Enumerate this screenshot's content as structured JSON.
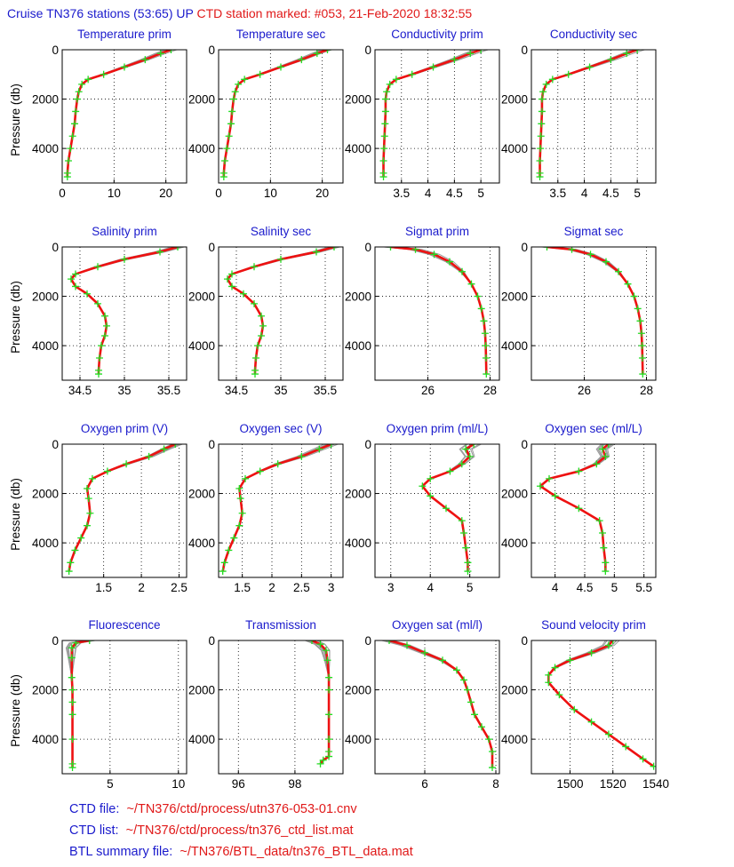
{
  "header": {
    "cruise_text": "Cruise TN376 stations (53:65) UP",
    "station_text": "CTD station marked: #053, 21-Feb-2020 18:32:55"
  },
  "footer": [
    {
      "label": "CTD file:",
      "value": "~/TN376/ctd/process/utn376-053-01.cnv"
    },
    {
      "label": "CTD list:",
      "value": "~/TN376/ctd/process/tn376_ctd_list.mat"
    },
    {
      "label": "BTL summary file:",
      "value": "~/TN376/BTL_data/tn376_BTL_data.mat"
    }
  ],
  "colors": {
    "title": "#1a1acc",
    "marked_station": "#ee1111",
    "bottle": "#22dd22",
    "other_stations": "#9a9a9a",
    "axes": "#000000"
  },
  "chart_data": [
    {
      "type": "line",
      "title": "Temperature prim",
      "ylabel": "Pressure (db)",
      "xlim": [
        0,
        24
      ],
      "ylim": [
        5400,
        0
      ],
      "xticks": [
        0,
        10,
        20
      ],
      "yticks": [
        0,
        2000,
        4000
      ],
      "series": [
        {
          "x": [
            21,
            19,
            16,
            12,
            8,
            5,
            3.8,
            3.2,
            2.9,
            2.6,
            2.4,
            2.0,
            1.6,
            1.2,
            1.0,
            1.0
          ],
          "y": [
            0,
            150,
            400,
            700,
            1000,
            1200,
            1400,
            1700,
            2000,
            2500,
            3000,
            3500,
            4000,
            4500,
            5000,
            5150
          ]
        }
      ]
    },
    {
      "type": "line",
      "title": "Temperature sec",
      "ylabel": "",
      "xlim": [
        0,
        24
      ],
      "ylim": [
        5400,
        0
      ],
      "xticks": [
        0,
        10,
        20
      ],
      "yticks": [
        0,
        2000,
        4000
      ],
      "series": [
        {
          "x": [
            21,
            19,
            16,
            12,
            8,
            5,
            3.8,
            3.2,
            2.9,
            2.6,
            2.4,
            2.0,
            1.6,
            1.2,
            1.0,
            1.0
          ],
          "y": [
            0,
            150,
            400,
            700,
            1000,
            1200,
            1400,
            1700,
            2000,
            2500,
            3000,
            3500,
            4000,
            4500,
            5000,
            5150
          ]
        }
      ]
    },
    {
      "type": "line",
      "title": "Conductivity prim",
      "ylabel": "",
      "xlim": [
        3,
        5.35
      ],
      "ylim": [
        5400,
        0
      ],
      "xticks": [
        3.5,
        4,
        4.5,
        5
      ],
      "xticklabels": [
        "3.5",
        "4",
        "4.5",
        "5"
      ],
      "yticks": [
        0,
        2000,
        4000
      ],
      "series": [
        {
          "x": [
            5.0,
            4.8,
            4.5,
            4.1,
            3.7,
            3.4,
            3.28,
            3.22,
            3.2,
            3.2,
            3.19,
            3.18,
            3.17,
            3.16,
            3.16,
            3.16
          ],
          "y": [
            0,
            150,
            400,
            700,
            1000,
            1200,
            1400,
            1700,
            2000,
            2500,
            3000,
            3500,
            4000,
            4500,
            5000,
            5150
          ]
        }
      ]
    },
    {
      "type": "line",
      "title": "Conductivity sec",
      "ylabel": "",
      "xlim": [
        3,
        5.35
      ],
      "ylim": [
        5400,
        0
      ],
      "xticks": [
        3.5,
        4,
        4.5,
        5
      ],
      "xticklabels": [
        "3.5",
        "4",
        "4.5",
        "5"
      ],
      "yticks": [
        0,
        2000,
        4000
      ],
      "series": [
        {
          "x": [
            5.0,
            4.8,
            4.5,
            4.1,
            3.7,
            3.4,
            3.28,
            3.22,
            3.2,
            3.2,
            3.19,
            3.18,
            3.17,
            3.16,
            3.16,
            3.16
          ],
          "y": [
            0,
            150,
            400,
            700,
            1000,
            1200,
            1400,
            1700,
            2000,
            2500,
            3000,
            3500,
            4000,
            4500,
            5000,
            5150
          ]
        }
      ]
    },
    {
      "type": "line",
      "title": "Salinity prim",
      "ylabel": "Pressure (db)",
      "xlim": [
        34.3,
        35.7
      ],
      "ylim": [
        5400,
        0
      ],
      "xticks": [
        34.5,
        35,
        35.5
      ],
      "xticklabels": [
        "34.5",
        "35",
        "35.5"
      ],
      "yticks": [
        0,
        2000,
        4000
      ],
      "series": [
        {
          "x": [
            35.6,
            35.4,
            35.0,
            34.7,
            34.45,
            34.4,
            34.45,
            34.58,
            34.7,
            34.78,
            34.8,
            34.78,
            34.74,
            34.72,
            34.71,
            34.71
          ],
          "y": [
            0,
            200,
            500,
            800,
            1100,
            1300,
            1600,
            1900,
            2300,
            2800,
            3200,
            3600,
            4000,
            4500,
            5000,
            5150
          ]
        }
      ]
    },
    {
      "type": "line",
      "title": "Salinity sec",
      "ylabel": "",
      "xlim": [
        34.3,
        35.7
      ],
      "ylim": [
        5400,
        0
      ],
      "xticks": [
        34.5,
        35,
        35.5
      ],
      "xticklabels": [
        "34.5",
        "35",
        "35.5"
      ],
      "yticks": [
        0,
        2000,
        4000
      ],
      "series": [
        {
          "x": [
            35.6,
            35.4,
            35.0,
            34.7,
            34.45,
            34.4,
            34.45,
            34.58,
            34.7,
            34.78,
            34.8,
            34.78,
            34.74,
            34.72,
            34.71,
            34.71
          ],
          "y": [
            0,
            200,
            500,
            800,
            1100,
            1300,
            1600,
            1900,
            2300,
            2800,
            3200,
            3600,
            4000,
            4500,
            5000,
            5150
          ]
        }
      ]
    },
    {
      "type": "line",
      "title": "Sigmat prim",
      "ylabel": "",
      "xlim": [
        24.3,
        28.3
      ],
      "ylim": [
        5400,
        0
      ],
      "xticks": [
        26,
        28
      ],
      "yticks": [
        0,
        2000,
        4000
      ],
      "series": [
        {
          "x": [
            24.8,
            25.6,
            26.2,
            26.7,
            27.1,
            27.4,
            27.6,
            27.72,
            27.8,
            27.84,
            27.86,
            27.87,
            27.88
          ],
          "y": [
            0,
            100,
            300,
            600,
            1000,
            1500,
            2000,
            2500,
            3000,
            3500,
            4000,
            4500,
            5150
          ]
        }
      ]
    },
    {
      "type": "line",
      "title": "Sigmat sec",
      "ylabel": "",
      "xlim": [
        24.3,
        28.3
      ],
      "ylim": [
        5400,
        0
      ],
      "xticks": [
        26,
        28
      ],
      "yticks": [
        0,
        2000,
        4000
      ],
      "series": [
        {
          "x": [
            24.8,
            25.6,
            26.2,
            26.7,
            27.1,
            27.4,
            27.6,
            27.72,
            27.8,
            27.84,
            27.86,
            27.87,
            27.88
          ],
          "y": [
            0,
            100,
            300,
            600,
            1000,
            1500,
            2000,
            2500,
            3000,
            3500,
            4000,
            4500,
            5150
          ]
        }
      ]
    },
    {
      "type": "line",
      "title": "Oxygen prim (V)",
      "ylabel": "Pressure (db)",
      "xlim": [
        0.95,
        2.6
      ],
      "ylim": [
        5400,
        0
      ],
      "xticks": [
        1.5,
        2,
        2.5
      ],
      "xticklabels": [
        "1.5",
        "2",
        "2.5"
      ],
      "yticks": [
        0,
        2000,
        4000
      ],
      "series": [
        {
          "x": [
            2.45,
            2.3,
            2.1,
            1.8,
            1.55,
            1.35,
            1.28,
            1.3,
            1.32,
            1.28,
            1.2,
            1.12,
            1.06,
            1.04
          ],
          "y": [
            0,
            200,
            500,
            800,
            1100,
            1400,
            1800,
            2200,
            2800,
            3300,
            3800,
            4300,
            4800,
            5150
          ]
        }
      ]
    },
    {
      "type": "line",
      "title": "Oxygen sec (V)",
      "ylabel": "",
      "xlim": [
        1.1,
        3.2
      ],
      "ylim": [
        5400,
        0
      ],
      "xticks": [
        1.5,
        2,
        2.5,
        3
      ],
      "xticklabels": [
        "1.5",
        "2",
        "2.5",
        "3"
      ],
      "yticks": [
        0,
        2000,
        4000
      ],
      "series": [
        {
          "x": [
            3.0,
            2.8,
            2.5,
            2.1,
            1.8,
            1.55,
            1.45,
            1.47,
            1.5,
            1.45,
            1.36,
            1.27,
            1.2,
            1.17
          ],
          "y": [
            0,
            200,
            500,
            800,
            1100,
            1400,
            1800,
            2200,
            2800,
            3300,
            3800,
            4300,
            4800,
            5150
          ]
        }
      ]
    },
    {
      "type": "line",
      "title": "Oxygen prim (ml/L)",
      "ylabel": "",
      "xlim": [
        2.6,
        5.75
      ],
      "ylim": [
        5400,
        0
      ],
      "xticks": [
        3,
        4,
        5
      ],
      "yticks": [
        0,
        2000,
        4000
      ],
      "series": [
        {
          "x": [
            5.1,
            4.9,
            5.0,
            4.8,
            4.5,
            4.0,
            3.8,
            4.0,
            4.4,
            4.8,
            4.85,
            4.9,
            4.95,
            4.95
          ],
          "y": [
            0,
            200,
            500,
            800,
            1100,
            1400,
            1700,
            2100,
            2600,
            3100,
            3600,
            4200,
            4800,
            5150
          ]
        }
      ]
    },
    {
      "type": "line",
      "title": "Oxygen sec (ml/L)",
      "ylabel": "",
      "xlim": [
        3.6,
        5.7
      ],
      "ylim": [
        5400,
        0
      ],
      "xticks": [
        4,
        4.5,
        5,
        5.5
      ],
      "xticklabels": [
        "4",
        "4.5",
        "5",
        "5.5"
      ],
      "yticks": [
        0,
        2000,
        4000
      ],
      "series": [
        {
          "x": [
            4.9,
            4.8,
            4.85,
            4.7,
            4.4,
            3.9,
            3.75,
            4.0,
            4.4,
            4.75,
            4.8,
            4.82,
            4.85,
            4.85
          ],
          "y": [
            0,
            200,
            500,
            800,
            1100,
            1400,
            1700,
            2100,
            2600,
            3100,
            3600,
            4200,
            4800,
            5150
          ]
        }
      ]
    },
    {
      "type": "line",
      "title": "Fluorescence",
      "ylabel": "Pressure (db)",
      "xlim": [
        1.5,
        10.6
      ],
      "ylim": [
        5400,
        0
      ],
      "xticks": [
        5,
        10
      ],
      "yticks": [
        0,
        2000,
        4000
      ],
      "series": [
        {
          "x": [
            3.5,
            2.5,
            2.2,
            2.2,
            2.2,
            2.25,
            2.25,
            2.25,
            2.25,
            2.25,
            2.25
          ],
          "y": [
            0,
            100,
            300,
            700,
            1500,
            2000,
            2500,
            3000,
            4000,
            5000,
            5150
          ]
        }
      ]
    },
    {
      "type": "line",
      "title": "Transmission",
      "ylabel": "",
      "xlim": [
        95.3,
        99.7
      ],
      "ylim": [
        5400,
        0
      ],
      "xticks": [
        96,
        98
      ],
      "yticks": [
        0,
        2000,
        4000
      ],
      "series": [
        {
          "x": [
            98.6,
            98.9,
            99.1,
            99.15,
            99.2,
            99.2,
            99.2,
            99.2,
            99.2,
            99.2,
            99.0,
            98.9
          ],
          "y": [
            0,
            150,
            400,
            800,
            1500,
            2000,
            3000,
            4000,
            4500,
            4700,
            4850,
            5000
          ]
        }
      ]
    },
    {
      "type": "line",
      "title": "Oxygen sat (ml/l)",
      "ylabel": "",
      "xlim": [
        4.6,
        8.1
      ],
      "ylim": [
        5400,
        0
      ],
      "xticks": [
        6,
        8
      ],
      "yticks": [
        0,
        2000,
        4000
      ],
      "series": [
        {
          "x": [
            5.0,
            5.5,
            6.0,
            6.5,
            6.9,
            7.1,
            7.2,
            7.3,
            7.4,
            7.6,
            7.8,
            7.9,
            7.9
          ],
          "y": [
            0,
            200,
            500,
            800,
            1200,
            1600,
            2000,
            2500,
            3000,
            3500,
            4000,
            4500,
            5150
          ]
        }
      ]
    },
    {
      "type": "line",
      "title": "Sound velocity prim",
      "ylabel": "",
      "xlim": [
        1482,
        1540
      ],
      "ylim": [
        5400,
        0
      ],
      "xticks": [
        1500,
        1520,
        1540
      ],
      "yticks": [
        0,
        2000,
        4000
      ],
      "series": [
        {
          "x": [
            1520,
            1518,
            1510,
            1500,
            1493,
            1490,
            1490,
            1495,
            1502,
            1510,
            1518,
            1526,
            1534,
            1539
          ],
          "y": [
            0,
            200,
            500,
            800,
            1100,
            1400,
            1700,
            2200,
            2800,
            3300,
            3800,
            4300,
            4800,
            5100
          ]
        }
      ]
    }
  ]
}
